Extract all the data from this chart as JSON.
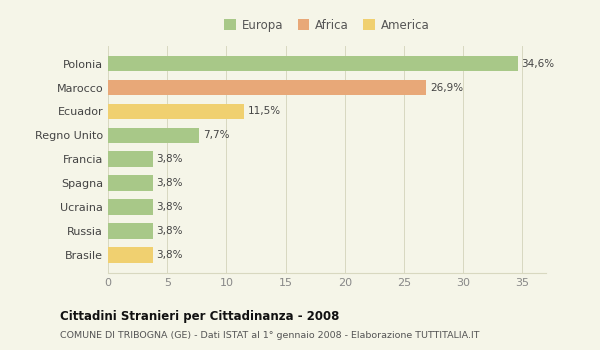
{
  "categories": [
    "Polonia",
    "Marocco",
    "Ecuador",
    "Regno Unito",
    "Francia",
    "Spagna",
    "Ucraina",
    "Russia",
    "Brasile"
  ],
  "values": [
    34.6,
    26.9,
    11.5,
    7.7,
    3.8,
    3.8,
    3.8,
    3.8,
    3.8
  ],
  "labels": [
    "34,6%",
    "26,9%",
    "11,5%",
    "7,7%",
    "3,8%",
    "3,8%",
    "3,8%",
    "3,8%",
    "3,8%"
  ],
  "colors": [
    "#a8c888",
    "#e8a878",
    "#f0d070",
    "#a8c888",
    "#a8c888",
    "#a8c888",
    "#a8c888",
    "#a8c888",
    "#f0d070"
  ],
  "legend_labels": [
    "Europa",
    "Africa",
    "America"
  ],
  "legend_colors": [
    "#a8c888",
    "#e8a878",
    "#f0d070"
  ],
  "title": "Cittadini Stranieri per Cittadinanza - 2008",
  "subtitle": "COMUNE DI TRIBOGNA (GE) - Dati ISTAT al 1° gennaio 2008 - Elaborazione TUTTITALIA.IT",
  "xlim": [
    0,
    37
  ],
  "xticks": [
    0,
    5,
    10,
    15,
    20,
    25,
    30,
    35
  ],
  "background_color": "#f5f5e8",
  "grid_color": "#d8d8c0"
}
